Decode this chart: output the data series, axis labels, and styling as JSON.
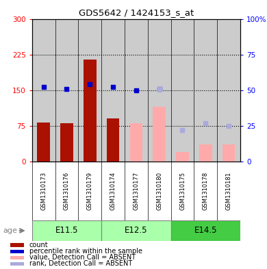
{
  "title": "GDS5642 / 1424153_s_at",
  "samples": [
    "GSM1310173",
    "GSM1310176",
    "GSM1310179",
    "GSM1310174",
    "GSM1310177",
    "GSM1310180",
    "GSM1310175",
    "GSM1310178",
    "GSM1310181"
  ],
  "age_groups": [
    {
      "label": "E11.5",
      "start": 0,
      "end": 3,
      "color": "#AAFFAA"
    },
    {
      "label": "E12.5",
      "start": 3,
      "end": 6,
      "color": "#AAFFAA"
    },
    {
      "label": "E14.5",
      "start": 6,
      "end": 9,
      "color": "#44CC44"
    }
  ],
  "count_values": [
    82,
    80,
    215,
    90,
    null,
    null,
    null,
    null,
    null
  ],
  "percentile_values_pct": [
    52,
    51,
    54,
    52,
    50,
    51,
    null,
    null,
    null
  ],
  "absent_value_values": [
    null,
    null,
    null,
    null,
    80,
    115,
    20,
    35,
    35
  ],
  "absent_rank_values_pct": [
    null,
    null,
    null,
    null,
    null,
    51,
    22,
    27,
    25
  ],
  "ylim_left": [
    0,
    300
  ],
  "ylim_right": [
    0,
    100
  ],
  "yticks_left": [
    0,
    75,
    150,
    225,
    300
  ],
  "ytick_labels_left": [
    "0",
    "75",
    "150",
    "225",
    "300"
  ],
  "ytick_labels_right": [
    "0",
    "25",
    "50",
    "75",
    "100%"
  ],
  "count_color": "#AA1100",
  "percentile_color": "#0000CC",
  "absent_value_color": "#FFAAAA",
  "absent_rank_color": "#AAAADD",
  "sample_area_color": "#CCCCCC",
  "bar_width": 0.55,
  "chart_bg": "#FFFFFF"
}
